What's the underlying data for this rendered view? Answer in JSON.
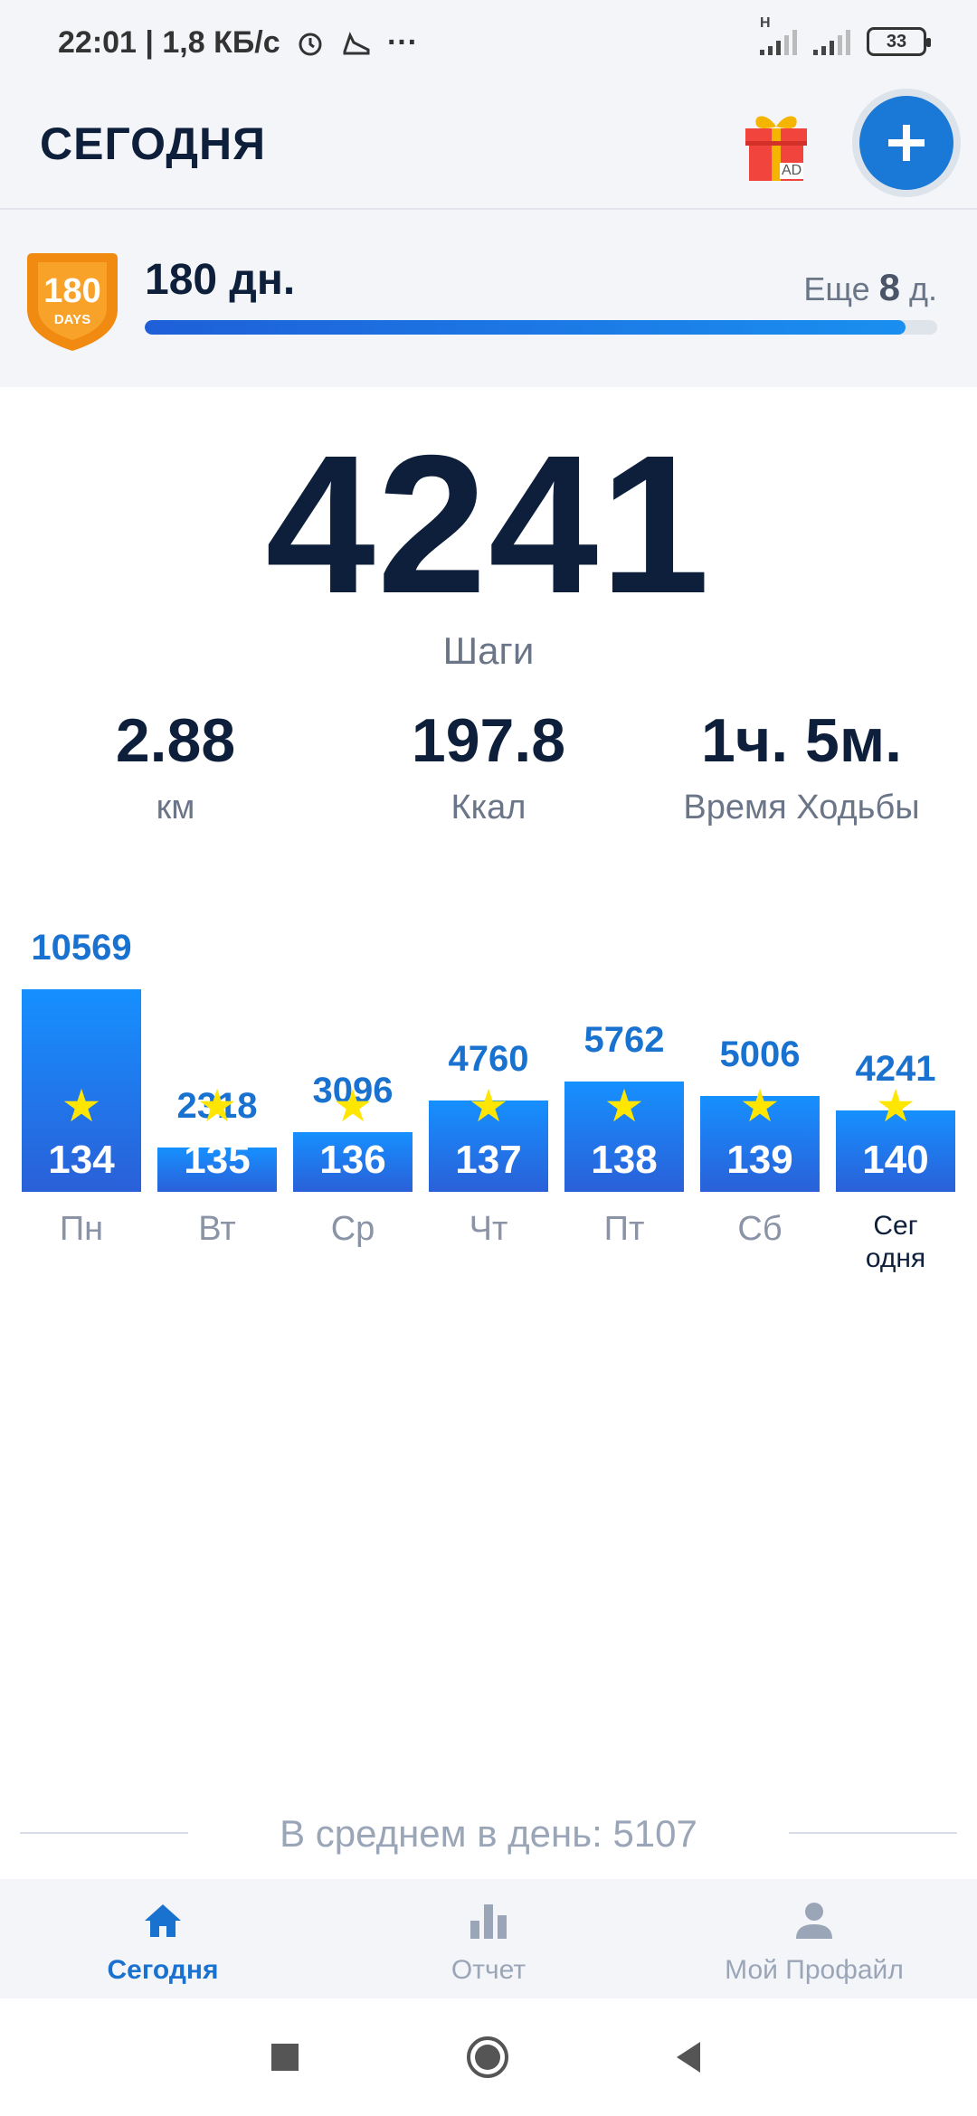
{
  "status_bar": {
    "time_speed": "22:01 | 1,8 КБ/с",
    "network": "H",
    "battery": "33",
    "alarm_icon": "alarm-clock-icon",
    "notification_icon": "shoe-icon",
    "more_icon": "more-dots-icon"
  },
  "header": {
    "title": "СЕГОДНЯ",
    "gift_icon": "gift-ad-icon",
    "gift_badge": "AD",
    "add_icon": "plus-icon"
  },
  "streak": {
    "badge_number": "180",
    "badge_text": "DAYS",
    "days": "180 дн.",
    "left_prefix": "Еще",
    "left_value": "8",
    "left_suffix": "д.",
    "progress": 0.96
  },
  "today": {
    "steps": "4241",
    "steps_label": "Шаги"
  },
  "stats": [
    {
      "value": "2.88",
      "label": "км"
    },
    {
      "value": "197.8",
      "label": "Ккал"
    },
    {
      "value": "1ч. 5м.",
      "label": "Время Ходьбы"
    }
  ],
  "chart_data": {
    "type": "bar",
    "categories": [
      "Пн",
      "Вт",
      "Ср",
      "Чт",
      "Пт",
      "Сб",
      "Сег одня"
    ],
    "values": [
      10569,
      2318,
      3096,
      4760,
      5762,
      5006,
      4241
    ],
    "day_numbers": [
      "134",
      "135",
      "136",
      "137",
      "138",
      "139",
      "140"
    ],
    "title": "",
    "xlabel": "",
    "ylabel": "",
    "ylim": [
      0,
      10569
    ],
    "grid": false,
    "bar_color": "#1a8cff"
  },
  "day_labels": [
    "Пн",
    "Вт",
    "Ср",
    "Чт",
    "Пт",
    "Сб",
    "Сег\nодня"
  ],
  "average": "В среднем в день: 5107",
  "nav": [
    {
      "label": "Сегодня",
      "icon": "home-icon",
      "active": true
    },
    {
      "label": "Отчет",
      "icon": "bar-chart-icon",
      "active": false
    },
    {
      "label": "Мой Профайл",
      "icon": "person-icon",
      "active": false
    }
  ],
  "colors": {
    "accent": "#1a72d0",
    "badge": "#f08a10",
    "text": "#0d1f3a",
    "muted": "#6a7587"
  }
}
